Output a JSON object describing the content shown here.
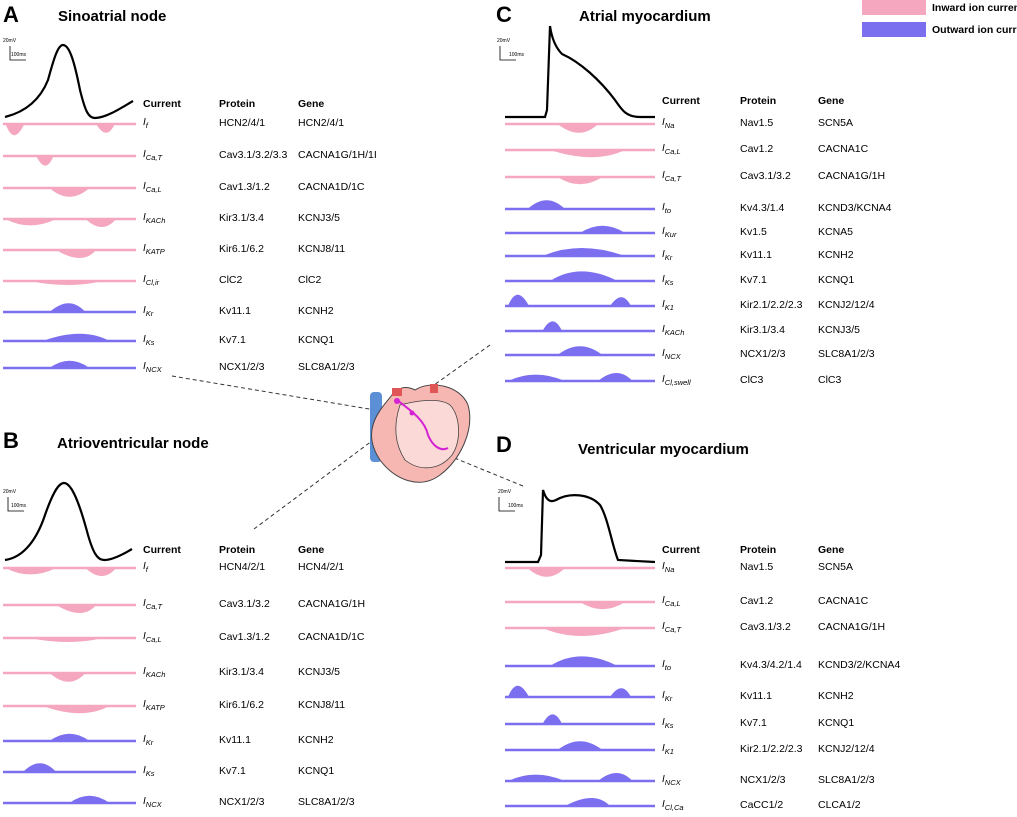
{
  "legend": {
    "inward": {
      "label": "Inward ion current",
      "color": "#f4a7bf"
    },
    "outward": {
      "label": "Outward ion current",
      "color": "#7b6ff0"
    }
  },
  "scale": {
    "voltage": "20mV",
    "time": "100ms"
  },
  "headers": {
    "current": "Current",
    "protein": "Protein",
    "gene": "Gene"
  },
  "panels": [
    {
      "letter": "A",
      "title": "Sinoatrial node",
      "rows": [
        {
          "cur": "I",
          "sub": "f",
          "protein": "HCN2/4/1",
          "gene": "HCN2/4/1",
          "dir": "in"
        },
        {
          "cur": "I",
          "sub": "Ca,T",
          "protein": "Cav3.1/3.2/3.3",
          "gene": "CACNA1G/1H/1I",
          "dir": "in"
        },
        {
          "cur": "I",
          "sub": "Ca,L",
          "protein": "Cav1.3/1.2",
          "gene": "CACNA1D/1C",
          "dir": "in"
        },
        {
          "cur": "I",
          "sub": "KACh",
          "protein": "Kir3.1/3.4",
          "gene": "KCNJ3/5",
          "dir": "in"
        },
        {
          "cur": "I",
          "sub": "KATP",
          "protein": "Kir6.1/6.2",
          "gene": "KCNJ8/11",
          "dir": "in"
        },
        {
          "cur": "I",
          "sub": "Cl,ir",
          "protein": "ClC2",
          "gene": "ClC2",
          "dir": "in"
        },
        {
          "cur": "I",
          "sub": "Kr",
          "protein": "Kv11.1",
          "gene": "KCNH2",
          "dir": "out"
        },
        {
          "cur": "I",
          "sub": "Ks",
          "protein": "Kv7.1",
          "gene": "KCNQ1",
          "dir": "out"
        },
        {
          "cur": "I",
          "sub": "NCX",
          "protein": "NCX1/2/3",
          "gene": "SLC8A1/2/3",
          "dir": "out"
        }
      ]
    },
    {
      "letter": "B",
      "title": "Atrioventricular node",
      "rows": [
        {
          "cur": "I",
          "sub": "f",
          "protein": "HCN4/2/1",
          "gene": "HCN4/2/1",
          "dir": "in"
        },
        {
          "cur": "I",
          "sub": "Ca,T",
          "protein": "Cav3.1/3.2",
          "gene": "CACNA1G/1H",
          "dir": "in"
        },
        {
          "cur": "I",
          "sub": "Ca,L",
          "protein": "Cav1.3/1.2",
          "gene": "CACNA1D/1C",
          "dir": "in"
        },
        {
          "cur": "I",
          "sub": "KACh",
          "protein": "Kir3.1/3.4",
          "gene": "KCNJ3/5",
          "dir": "in"
        },
        {
          "cur": "I",
          "sub": "KATP",
          "protein": "Kir6.1/6.2",
          "gene": "KCNJ8/11",
          "dir": "in"
        },
        {
          "cur": "I",
          "sub": "Kr",
          "protein": "Kv11.1",
          "gene": "KCNH2",
          "dir": "out"
        },
        {
          "cur": "I",
          "sub": "Ks",
          "protein": "Kv7.1",
          "gene": "KCNQ1",
          "dir": "out"
        },
        {
          "cur": "I",
          "sub": "NCX",
          "protein": "NCX1/2/3",
          "gene": "SLC8A1/2/3",
          "dir": "out"
        }
      ]
    },
    {
      "letter": "C",
      "title": "Atrial myocardium",
      "rows": [
        {
          "cur": "I",
          "sub": "Na",
          "protein": "Nav1.5",
          "gene": "SCN5A",
          "dir": "in"
        },
        {
          "cur": "I",
          "sub": "Ca,L",
          "protein": "Cav1.2",
          "gene": "CACNA1C",
          "dir": "in"
        },
        {
          "cur": "I",
          "sub": "Ca,T",
          "protein": "Cav3.1/3.2",
          "gene": "CACNA1G/1H",
          "dir": "in"
        },
        {
          "cur": "I",
          "sub": "to",
          "protein": "Kv4.3/1.4",
          "gene": "KCND3/KCNA4",
          "dir": "out"
        },
        {
          "cur": "I",
          "sub": "Kur",
          "protein": "Kv1.5",
          "gene": "KCNA5",
          "dir": "out"
        },
        {
          "cur": "I",
          "sub": "Kr",
          "protein": "Kv11.1",
          "gene": "KCNH2",
          "dir": "out"
        },
        {
          "cur": "I",
          "sub": "Ks",
          "protein": "Kv7.1",
          "gene": "KCNQ1",
          "dir": "out"
        },
        {
          "cur": "I",
          "sub": "K1",
          "protein": "Kir2.1/2.2/2.3",
          "gene": "KCNJ2/12/4",
          "dir": "out"
        },
        {
          "cur": "I",
          "sub": "KACh",
          "protein": "Kir3.1/3.4",
          "gene": "KCNJ3/5",
          "dir": "out"
        },
        {
          "cur": "I",
          "sub": "NCX",
          "protein": "NCX1/2/3",
          "gene": "SLC8A1/2/3",
          "dir": "out"
        },
        {
          "cur": "I",
          "sub": "Cl,swell",
          "protein": "ClC3",
          "gene": "ClC3",
          "dir": "out"
        }
      ]
    },
    {
      "letter": "D",
      "title": "Ventricular myocardium",
      "rows": [
        {
          "cur": "I",
          "sub": "Na",
          "protein": "Nav1.5",
          "gene": "SCN5A",
          "dir": "in"
        },
        {
          "cur": "I",
          "sub": "Ca,L",
          "protein": "Cav1.2",
          "gene": "CACNA1C",
          "dir": "in"
        },
        {
          "cur": "I",
          "sub": "Ca,T",
          "protein": "Cav3.1/3.2",
          "gene": "CACNA1G/1H",
          "dir": "in"
        },
        {
          "cur": "I",
          "sub": "to",
          "protein": "Kv4.3/4.2/1.4",
          "gene": "KCND3/2/KCNA4",
          "dir": "out"
        },
        {
          "cur": "I",
          "sub": "Kr",
          "protein": "Kv11.1",
          "gene": "KCNH2",
          "dir": "out"
        },
        {
          "cur": "I",
          "sub": "Ks",
          "protein": "Kv7.1",
          "gene": "KCNQ1",
          "dir": "out"
        },
        {
          "cur": "I",
          "sub": "K1",
          "protein": "Kir2.1/2.2/2.3",
          "gene": "KCNJ2/12/4",
          "dir": "out"
        },
        {
          "cur": "I",
          "sub": "NCX",
          "protein": "NCX1/2/3",
          "gene": "SLC8A1/2/3",
          "dir": "out"
        },
        {
          "cur": "I",
          "sub": "Cl,Ca",
          "protein": "CaCC1/2",
          "gene": "CLCA1/2",
          "dir": "out"
        }
      ]
    }
  ]
}
